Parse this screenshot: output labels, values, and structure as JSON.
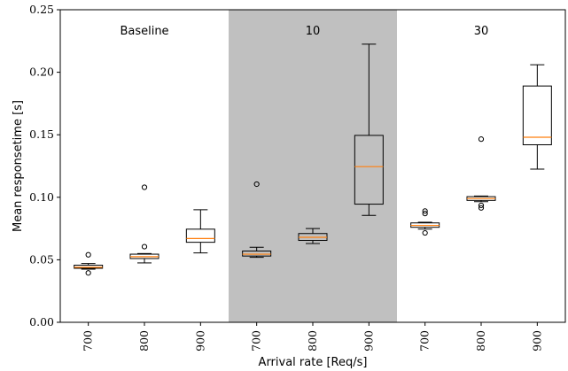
{
  "chart_data": {
    "type": "box",
    "title": "",
    "xlabel": "Arrival rate [Req/s]",
    "ylabel": "Mean responsetime [s]",
    "ylim": [
      0,
      0.25
    ],
    "yticks": [
      "0.00",
      "0.05",
      "0.10",
      "0.15",
      "0.20",
      "0.25"
    ],
    "grid": false,
    "colors": {
      "box": "#000000",
      "median": "#ff7f0e",
      "shade": "#c0c0c0"
    },
    "groups": [
      {
        "label": "Baseline",
        "shaded": false,
        "start": 0,
        "end": 3
      },
      {
        "label": "10",
        "shaded": true,
        "start": 3,
        "end": 6
      },
      {
        "label": "30",
        "shaded": false,
        "start": 6,
        "end": 9
      }
    ],
    "categories": [
      "700",
      "800",
      "900",
      "700",
      "800",
      "900",
      "700",
      "800",
      "900"
    ],
    "boxes": [
      {
        "group": "Baseline",
        "x": "700",
        "whislo": 0.0425,
        "q1": 0.0432,
        "med": 0.044,
        "q3": 0.0457,
        "whishi": 0.047,
        "fliers": [
          0.054,
          0.0395
        ]
      },
      {
        "group": "Baseline",
        "x": "800",
        "whislo": 0.0475,
        "q1": 0.051,
        "med": 0.0525,
        "q3": 0.0545,
        "whishi": 0.055,
        "fliers": [
          0.108,
          0.0605
        ]
      },
      {
        "group": "Baseline",
        "x": "900",
        "whislo": 0.0555,
        "q1": 0.064,
        "med": 0.067,
        "q3": 0.0745,
        "whishi": 0.09,
        "fliers": []
      },
      {
        "group": "10",
        "x": "700",
        "whislo": 0.052,
        "q1": 0.053,
        "med": 0.0545,
        "q3": 0.057,
        "whishi": 0.06,
        "fliers": [
          0.1105
        ]
      },
      {
        "group": "10",
        "x": "800",
        "whislo": 0.063,
        "q1": 0.0655,
        "med": 0.068,
        "q3": 0.071,
        "whishi": 0.075,
        "fliers": []
      },
      {
        "group": "10",
        "x": "900",
        "whislo": 0.0855,
        "q1": 0.0945,
        "med": 0.1245,
        "q3": 0.1495,
        "whishi": 0.2225,
        "fliers": []
      },
      {
        "group": "30",
        "x": "700",
        "whislo": 0.0745,
        "q1": 0.076,
        "med": 0.0775,
        "q3": 0.0795,
        "whishi": 0.08,
        "fliers": [
          0.089,
          0.087,
          0.0715
        ]
      },
      {
        "group": "30",
        "x": "800",
        "whislo": 0.0965,
        "q1": 0.0975,
        "med": 0.099,
        "q3": 0.1005,
        "whishi": 0.101,
        "fliers": [
          0.1465,
          0.0935,
          0.0915
        ]
      },
      {
        "group": "30",
        "x": "900",
        "whislo": 0.1225,
        "q1": 0.142,
        "med": 0.148,
        "q3": 0.189,
        "whishi": 0.206,
        "fliers": []
      }
    ]
  }
}
